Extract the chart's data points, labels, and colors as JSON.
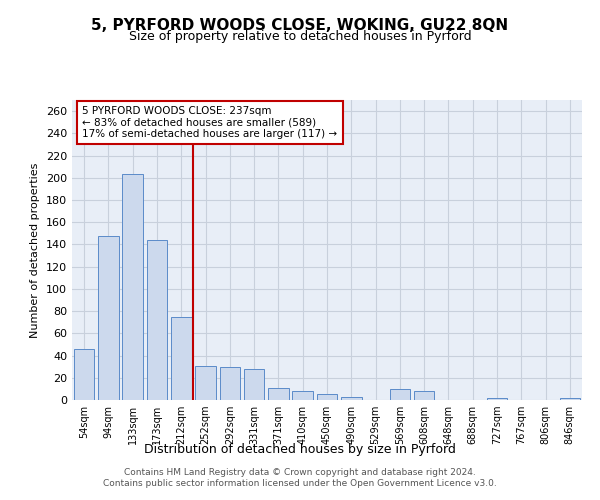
{
  "title": "5, PYRFORD WOODS CLOSE, WOKING, GU22 8QN",
  "subtitle": "Size of property relative to detached houses in Pyrford",
  "xlabel": "Distribution of detached houses by size in Pyrford",
  "ylabel": "Number of detached properties",
  "categories": [
    "54sqm",
    "94sqm",
    "133sqm",
    "173sqm",
    "212sqm",
    "252sqm",
    "292sqm",
    "331sqm",
    "371sqm",
    "410sqm",
    "450sqm",
    "490sqm",
    "529sqm",
    "569sqm",
    "608sqm",
    "648sqm",
    "688sqm",
    "727sqm",
    "767sqm",
    "806sqm",
    "846sqm"
  ],
  "values": [
    46,
    148,
    203,
    144,
    75,
    31,
    30,
    28,
    11,
    8,
    5,
    3,
    0,
    10,
    8,
    0,
    0,
    2,
    0,
    0,
    2
  ],
  "bar_color": "#ccd9ed",
  "bar_edge_color": "#5b8bc9",
  "vline_x": 4.5,
  "vline_color": "#c00000",
  "annotation_text": "5 PYRFORD WOODS CLOSE: 237sqm\n← 83% of detached houses are smaller (589)\n17% of semi-detached houses are larger (117) →",
  "annotation_box_color": "#ffffff",
  "annotation_box_edge": "#c00000",
  "ylim": [
    0,
    270
  ],
  "yticks": [
    0,
    20,
    40,
    60,
    80,
    100,
    120,
    140,
    160,
    180,
    200,
    220,
    240,
    260
  ],
  "footer": "Contains HM Land Registry data © Crown copyright and database right 2024.\nContains public sector information licensed under the Open Government Licence v3.0.",
  "bg_color": "#ffffff",
  "plot_bg_color": "#e8eef7",
  "grid_color": "#c8d0dc"
}
